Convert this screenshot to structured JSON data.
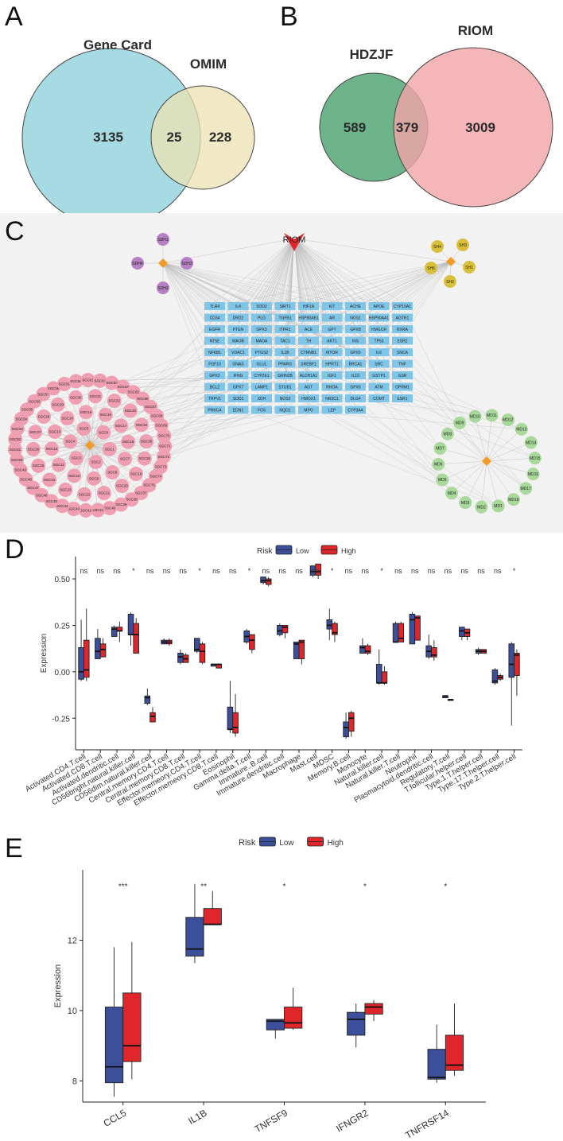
{
  "panels": {
    "a": "A",
    "b": "B",
    "c": "C",
    "d": "D",
    "e": "E"
  },
  "venn_a": {
    "left_name": "Gene Card",
    "right_name": "OMIM",
    "left_only": "3135",
    "overlap": "25",
    "right_only": "228",
    "left_color": "#a6dbe3",
    "right_color": "#ece2b2"
  },
  "venn_b": {
    "left_name": "HDZJF",
    "right_name": "RIOM",
    "left_only": "589",
    "overlap": "379",
    "right_only": "3009",
    "left_color": "#6db48a",
    "right_color": "#f3a4a8"
  },
  "network": {
    "hub_label": "RIOM",
    "sdh_nodes": [
      "SDH1",
      "SDH2",
      "SDH3",
      "SDH4"
    ],
    "sh_nodes": [
      "SH1",
      "SH2",
      "SH3",
      "SH4",
      "SH5"
    ],
    "md_nodes": [
      "MD1",
      "MD2",
      "MD3",
      "MD4",
      "MD5",
      "MD6",
      "MD7",
      "MD8",
      "MD9",
      "MD10",
      "MD11",
      "MD12",
      "MD13",
      "MD14",
      "MD15",
      "MD16",
      "MD17",
      "MD18"
    ],
    "sgc_nodes": [
      "SGC1",
      "SGC2",
      "SGC3",
      "SGC4",
      "SGC5",
      "SGC6",
      "SGC7",
      "SGC8",
      "SGC9",
      "SGC10",
      "SGC11",
      "SGC12",
      "SGC13",
      "SGC14",
      "SGC15",
      "SGC16",
      "SGC17",
      "SGC18",
      "SGC19",
      "SGC20",
      "SGC21",
      "SGC22",
      "SGC23",
      "SGC24",
      "SGC25",
      "SGC26",
      "SGC27",
      "SGC28",
      "SGC29",
      "SGC30",
      "SGC31",
      "SGC32",
      "SGC33",
      "SGC34",
      "SGC35",
      "SGC36",
      "SGC37",
      "SGC38",
      "SGC39",
      "SGC40",
      "SGC41",
      "SGC42",
      "SGC43",
      "SGC44",
      "SGC45",
      "SGC46",
      "SGC47",
      "SGC48",
      "SGC49",
      "SGC50",
      "SGC51",
      "SGC52",
      "SGC53",
      "SGC54",
      "SGC55",
      "SGC56",
      "SGC57",
      "SGC58",
      "SGC59",
      "SGC60",
      "SGC61",
      "SGC62",
      "SGC63",
      "SGC64",
      "SGC65",
      "SGC66",
      "SGC67",
      "SGC68",
      "SGC69",
      "SGC70",
      "SGC71",
      "SGC72",
      "SGC73",
      "SGC74",
      "SGC75"
    ],
    "gene_rows": [
      [
        "TLR4",
        "IL4",
        "SOD2",
        "SIRT1",
        "HIF1A",
        "KIT",
        "ACHE",
        "APOE",
        "CYP19A1"
      ],
      [
        "CD34",
        "DRD2",
        "PLG",
        "TGFB1",
        "HSP90AB1",
        "AR",
        "NOS1",
        "HSP90AA1",
        "AGTR1"
      ],
      [
        "EGFR",
        "PTEN",
        "GPX3",
        "ITPR1",
        "ACE",
        "GPT",
        "GPX8",
        "HMGCR",
        "RXRA"
      ],
      [
        "NT5E",
        "MAOB",
        "MAOA",
        "TAC1",
        "TH",
        "AKT1",
        "INS",
        "TP53",
        "ESR2"
      ],
      [
        "NFKB1",
        "VDAC1",
        "PTGS2",
        "IL1B",
        "CTNNB1",
        "MTOR",
        "GPX5",
        "IL6",
        "SNCA"
      ],
      [
        "FGF10",
        "GNAS",
        "GLUL",
        "PPARG",
        "SREBF1",
        "HPRT1",
        "BRCA1",
        "SRC",
        "TNF"
      ],
      [
        "GPX2",
        "IFNG",
        "CYP2E1",
        "GRIN2B",
        "ALDH1A1",
        "IGF1",
        "IL10",
        "GSTP1",
        "GSR"
      ],
      [
        "BCL2",
        "GPX7",
        "LAMP1",
        "STUB1",
        "AGT",
        "RHOA",
        "GPX6",
        "ATM",
        "OPRM1"
      ],
      [
        "TRPV1",
        "SOD1",
        "XDH",
        "NOS3",
        "HMOX1",
        "NR3C1",
        "DLG4",
        "COMT",
        "ESR1"
      ],
      [
        "PRKCA",
        "EDN1",
        "FOS",
        "NQO1",
        "MPO",
        "LEP",
        "CYP3A4"
      ]
    ]
  },
  "chart_data": [
    {
      "type": "box",
      "panel": "D",
      "legend_title": "Risk",
      "legend_position": "top",
      "series": [
        {
          "name": "Low",
          "color": "#3b4f9a"
        },
        {
          "name": "High",
          "color": "#e0262b"
        }
      ],
      "ylabel": "Expression",
      "ylim": [
        -0.42,
        0.62
      ],
      "yticks": [
        -0.25,
        0,
        0.25,
        0.5
      ],
      "ytick_labels": [
        "-0.25",
        "0.00",
        "0.25",
        "0.50"
      ],
      "categories": [
        "Activated.CD4.T.cell",
        "Activated.CD8.T.cell",
        "Activated.dendritic.cell",
        "CD56bright.natural.killer.cell",
        "CD56dim.natural.killer.cell",
        "Central.memory.CD4.T.cell",
        "Central.memory.CD8.T.cell",
        "Effector.memeory.CD4.T.cell",
        "Effector.memeory.CD8.T.cell",
        "Eosinophil",
        "Gamma.delta.T.cell",
        "Immature..B.cell",
        "Immature.dendritic.cell",
        "Macrophage",
        "Mast.cell",
        "MDSC",
        "Memory.B.cell",
        "Monocyte",
        "Natural.killer.cell",
        "Natural.killer.T.cell",
        "Neutrophil",
        "Plasmacytoid.dendritic.cell",
        "Regulatory.T.cell",
        "T.follicular.helper.cell",
        "Type.1.T.helper.cell",
        "Type.17.T.helper.cell",
        "Type.2.T.helper.cell"
      ],
      "significance": [
        "ns",
        "ns",
        "ns",
        "*",
        "ns",
        "ns",
        "ns",
        "*",
        "ns",
        "ns",
        "*",
        "ns",
        "ns",
        "ns",
        "ns",
        "*",
        "ns",
        "ns",
        "*",
        "ns",
        "ns",
        "ns",
        "ns",
        "ns",
        "ns",
        "ns",
        "*"
      ],
      "low": [
        {
          "min": -0.05,
          "q1": -0.04,
          "median": 0.0,
          "q3": 0.13,
          "max": 0.28
        },
        {
          "min": 0.07,
          "q1": 0.07,
          "median": 0.11,
          "q3": 0.18,
          "max": 0.23
        },
        {
          "min": 0.19,
          "q1": 0.19,
          "median": 0.23,
          "q3": 0.24,
          "max": 0.25
        },
        {
          "min": 0.14,
          "q1": 0.2,
          "median": 0.2,
          "q3": 0.31,
          "max": 0.32
        },
        {
          "min": -0.18,
          "q1": -0.17,
          "median": -0.14,
          "q3": -0.13,
          "max": -0.09
        },
        {
          "min": 0.15,
          "q1": 0.15,
          "median": 0.16,
          "q3": 0.17,
          "max": 0.18
        },
        {
          "min": 0.04,
          "q1": 0.05,
          "median": 0.08,
          "q3": 0.1,
          "max": 0.12
        },
        {
          "min": 0.1,
          "q1": 0.11,
          "median": 0.12,
          "q3": 0.18,
          "max": 0.18
        },
        {
          "min": 0.03,
          "q1": 0.03,
          "median": 0.04,
          "q3": 0.04,
          "max": 0.04
        },
        {
          "min": -0.33,
          "q1": -0.31,
          "median": -0.31,
          "q3": -0.19,
          "max": -0.05
        },
        {
          "min": 0.15,
          "q1": 0.16,
          "median": 0.19,
          "q3": 0.22,
          "max": 0.23
        },
        {
          "min": 0.47,
          "q1": 0.48,
          "median": 0.49,
          "q3": 0.51,
          "max": 0.51
        },
        {
          "min": 0.19,
          "q1": 0.2,
          "median": 0.22,
          "q3": 0.25,
          "max": 0.26
        },
        {
          "min": 0.07,
          "q1": 0.07,
          "median": 0.15,
          "q3": 0.16,
          "max": 0.16
        },
        {
          "min": 0.51,
          "q1": 0.52,
          "median": 0.54,
          "q3": 0.57,
          "max": 0.57
        },
        {
          "min": 0.17,
          "q1": 0.23,
          "median": 0.25,
          "q3": 0.28,
          "max": 0.34
        },
        {
          "min": -0.36,
          "q1": -0.35,
          "median": -0.3,
          "q3": -0.27,
          "max": -0.22
        },
        {
          "min": 0.1,
          "q1": 0.1,
          "median": 0.13,
          "q3": 0.14,
          "max": 0.18
        },
        {
          "min": -0.07,
          "q1": -0.06,
          "median": -0.06,
          "q3": 0.04,
          "max": 0.12
        },
        {
          "min": 0.16,
          "q1": 0.16,
          "median": 0.16,
          "q3": 0.26,
          "max": 0.27
        },
        {
          "min": 0.15,
          "q1": 0.15,
          "median": 0.28,
          "q3": 0.31,
          "max": 0.32
        },
        {
          "min": 0.07,
          "q1": 0.08,
          "median": 0.11,
          "q3": 0.14,
          "max": 0.2
        },
        {
          "min": -0.14,
          "q1": -0.14,
          "median": -0.13,
          "q3": -0.13,
          "max": -0.13
        },
        {
          "min": 0.17,
          "q1": 0.19,
          "median": 0.22,
          "q3": 0.24,
          "max": 0.24
        },
        {
          "min": 0.09,
          "q1": 0.1,
          "median": 0.11,
          "q3": 0.12,
          "max": 0.13
        },
        {
          "min": -0.07,
          "q1": -0.06,
          "median": -0.05,
          "q3": 0.01,
          "max": 0.02
        },
        {
          "min": -0.29,
          "q1": -0.03,
          "median": 0.04,
          "q3": 0.15,
          "max": 0.16
        }
      ],
      "high": [
        {
          "min": -0.05,
          "q1": -0.03,
          "median": 0.01,
          "q3": 0.17,
          "max": 0.34
        },
        {
          "min": 0.08,
          "q1": 0.08,
          "median": 0.12,
          "q3": 0.15,
          "max": 0.18
        },
        {
          "min": 0.16,
          "q1": 0.22,
          "median": 0.22,
          "q3": 0.24,
          "max": 0.27
        },
        {
          "min": 0.1,
          "q1": 0.1,
          "median": 0.2,
          "q3": 0.26,
          "max": 0.29
        },
        {
          "min": -0.27,
          "q1": -0.27,
          "median": -0.24,
          "q3": -0.22,
          "max": -0.19
        },
        {
          "min": 0.14,
          "q1": 0.15,
          "median": 0.16,
          "q3": 0.17,
          "max": 0.18
        },
        {
          "min": 0.05,
          "q1": 0.05,
          "median": 0.07,
          "q3": 0.09,
          "max": 0.1
        },
        {
          "min": 0.04,
          "q1": 0.05,
          "median": 0.11,
          "q3": 0.15,
          "max": 0.16
        },
        {
          "min": 0.02,
          "q1": 0.02,
          "median": 0.04,
          "q3": 0.04,
          "max": 0.04
        },
        {
          "min": -0.35,
          "q1": -0.33,
          "median": -0.3,
          "q3": -0.22,
          "max": -0.12
        },
        {
          "min": 0.1,
          "q1": 0.12,
          "median": 0.17,
          "q3": 0.2,
          "max": 0.2
        },
        {
          "min": 0.46,
          "q1": 0.47,
          "median": 0.49,
          "q3": 0.5,
          "max": 0.51
        },
        {
          "min": 0.18,
          "q1": 0.21,
          "median": 0.24,
          "q3": 0.25,
          "max": 0.25
        },
        {
          "min": 0.04,
          "q1": 0.07,
          "median": 0.16,
          "q3": 0.17,
          "max": 0.17
        },
        {
          "min": 0.5,
          "q1": 0.52,
          "median": 0.54,
          "q3": 0.58,
          "max": 0.58
        },
        {
          "min": 0.16,
          "q1": 0.2,
          "median": 0.21,
          "q3": 0.26,
          "max": 0.27
        },
        {
          "min": -0.35,
          "q1": -0.32,
          "median": -0.25,
          "q3": -0.22,
          "max": -0.21
        },
        {
          "min": 0.09,
          "q1": 0.1,
          "median": 0.11,
          "q3": 0.14,
          "max": 0.15
        },
        {
          "min": -0.07,
          "q1": -0.06,
          "median": -0.06,
          "q3": 0.0,
          "max": 0.03
        },
        {
          "min": 0.16,
          "q1": 0.16,
          "median": 0.18,
          "q3": 0.26,
          "max": 0.27
        },
        {
          "min": 0.17,
          "q1": 0.17,
          "median": 0.29,
          "q3": 0.3,
          "max": 0.3
        },
        {
          "min": 0.06,
          "q1": 0.08,
          "median": 0.09,
          "q3": 0.13,
          "max": 0.17
        },
        {
          "min": -0.15,
          "q1": -0.15,
          "median": -0.15,
          "q3": -0.15,
          "max": -0.15
        },
        {
          "min": 0.17,
          "q1": 0.19,
          "median": 0.21,
          "q3": 0.23,
          "max": 0.23
        },
        {
          "min": 0.1,
          "q1": 0.1,
          "median": 0.11,
          "q3": 0.12,
          "max": 0.12
        },
        {
          "min": -0.05,
          "q1": -0.04,
          "median": -0.03,
          "q3": -0.02,
          "max": -0.01
        },
        {
          "min": -0.13,
          "q1": -0.02,
          "median": 0.09,
          "q3": 0.1,
          "max": 0.12
        }
      ]
    },
    {
      "type": "box",
      "panel": "E",
      "legend_title": "Risk",
      "legend_position": "top",
      "series": [
        {
          "name": "Low",
          "color": "#3b4f9a"
        },
        {
          "name": "High",
          "color": "#e0262b"
        }
      ],
      "ylabel": "Expression",
      "ylim": [
        7.4,
        14.0
      ],
      "yticks": [
        8,
        10,
        12
      ],
      "ytick_labels": [
        "8",
        "10",
        "12"
      ],
      "categories": [
        "CCL5",
        "IL1B",
        "TNFSF9",
        "IFNGR2",
        "TNFRSF14"
      ],
      "significance": [
        "***",
        "**",
        "*",
        "*",
        "*"
      ],
      "low": [
        {
          "min": 7.55,
          "q1": 7.95,
          "median": 8.4,
          "q3": 10.1,
          "max": 11.8
        },
        {
          "min": 11.35,
          "q1": 11.55,
          "median": 11.75,
          "q3": 12.65,
          "max": 13.6
        },
        {
          "min": 9.2,
          "q1": 9.45,
          "median": 9.7,
          "q3": 9.75,
          "max": 9.75
        },
        {
          "min": 8.95,
          "q1": 9.3,
          "median": 9.75,
          "q3": 9.95,
          "max": 10.2
        },
        {
          "min": 7.95,
          "q1": 8.05,
          "median": 8.1,
          "q3": 8.9,
          "max": 9.6
        }
      ],
      "high": [
        {
          "min": 8.05,
          "q1": 8.55,
          "median": 9.0,
          "q3": 10.5,
          "max": 11.95
        },
        {
          "min": 12.45,
          "q1": 12.45,
          "median": 12.45,
          "q3": 12.9,
          "max": 13.4
        },
        {
          "min": 9.45,
          "q1": 9.5,
          "median": 9.65,
          "q3": 10.1,
          "max": 10.65
        },
        {
          "min": 9.7,
          "q1": 9.9,
          "median": 10.1,
          "q3": 10.2,
          "max": 10.3
        },
        {
          "min": 8.15,
          "q1": 8.3,
          "median": 8.45,
          "q3": 9.3,
          "max": 10.2
        }
      ]
    }
  ]
}
